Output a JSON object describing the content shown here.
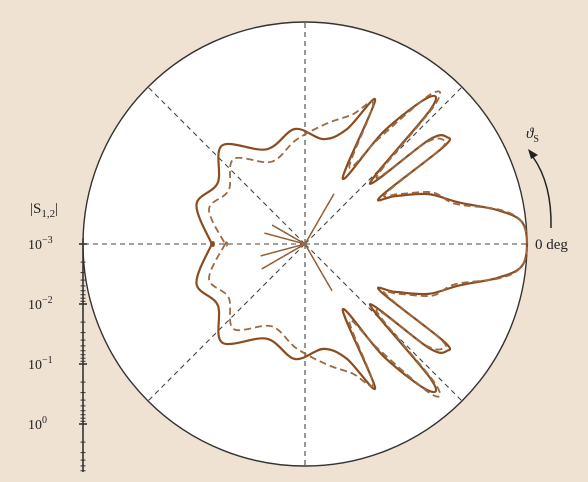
{
  "colors": {
    "background": "#efe2d2",
    "plot_area": "#ffffff",
    "axis": "#333333",
    "guide": "#444444",
    "solid_series": "#8b4d1f",
    "dashed_series": "#9a6a43"
  },
  "chart_data": {
    "type": "polar",
    "angle_label": "0 deg",
    "angle_symbol": "ϑ",
    "angle_symbol_subscript": "S",
    "radial_axis": {
      "label": "|S",
      "label_subscript": "1,2",
      "label_close": "|",
      "scale": "log",
      "ticks": [
        {
          "base": "10",
          "exp": "−3",
          "value": 0.001
        },
        {
          "base": "10",
          "exp": "−2",
          "value": 0.01
        },
        {
          "base": "10",
          "exp": "−1",
          "value": 0.1
        },
        {
          "base": "10",
          "exp": "0",
          "value": 1
        }
      ]
    },
    "grid_angles_deg": [
      0,
      45,
      90,
      135,
      180,
      225,
      270,
      315
    ],
    "series": [
      {
        "style": "solid",
        "angle_deg": [
          -180,
          -160,
          -145,
          -130,
          -112,
          -95,
          -80,
          -70,
          -64,
          -60,
          -55,
          -50,
          -47,
          -43,
          -40,
          -37,
          -35,
          -32,
          -28,
          -22,
          -15,
          -10,
          -6,
          0,
          6,
          10,
          15,
          22,
          28,
          32,
          35,
          37,
          40,
          43,
          47,
          50,
          55,
          60,
          64,
          70,
          80,
          95,
          112,
          130,
          145,
          160,
          180
        ],
        "radius_frac": [
          0.42,
          0.52,
          0.48,
          0.58,
          0.46,
          0.52,
          0.48,
          0.55,
          0.72,
          0.34,
          0.62,
          0.86,
          0.83,
          0.4,
          0.73,
          0.8,
          0.76,
          0.4,
          0.46,
          0.6,
          0.72,
          0.88,
          0.98,
          1.0,
          0.98,
          0.88,
          0.72,
          0.6,
          0.46,
          0.4,
          0.76,
          0.8,
          0.73,
          0.4,
          0.83,
          0.86,
          0.62,
          0.34,
          0.72,
          0.55,
          0.48,
          0.52,
          0.46,
          0.58,
          0.48,
          0.52,
          0.42
        ]
      },
      {
        "style": "dashed",
        "angle_deg": [
          -180,
          -160,
          -145,
          -130,
          -112,
          -95,
          -80,
          -70,
          -64,
          -60,
          -55,
          -50,
          -47,
          -43,
          -40,
          -37,
          -35,
          -32,
          -28,
          -22,
          -15,
          -10,
          -6,
          0,
          6,
          10,
          15,
          22,
          28,
          32,
          35,
          37,
          40,
          43,
          47,
          50,
          55,
          60,
          64,
          70,
          80,
          95,
          112,
          130,
          145,
          160,
          180
        ],
        "radius_frac": [
          0.36,
          0.46,
          0.42,
          0.5,
          0.4,
          0.47,
          0.55,
          0.62,
          0.7,
          0.4,
          0.58,
          0.88,
          0.86,
          0.44,
          0.71,
          0.78,
          0.74,
          0.43,
          0.48,
          0.62,
          0.7,
          0.89,
          0.98,
          1.0,
          0.98,
          0.89,
          0.7,
          0.62,
          0.48,
          0.43,
          0.74,
          0.78,
          0.71,
          0.44,
          0.86,
          0.88,
          0.58,
          0.4,
          0.7,
          0.62,
          0.55,
          0.47,
          0.4,
          0.5,
          0.42,
          0.46,
          0.36
        ]
      }
    ]
  }
}
